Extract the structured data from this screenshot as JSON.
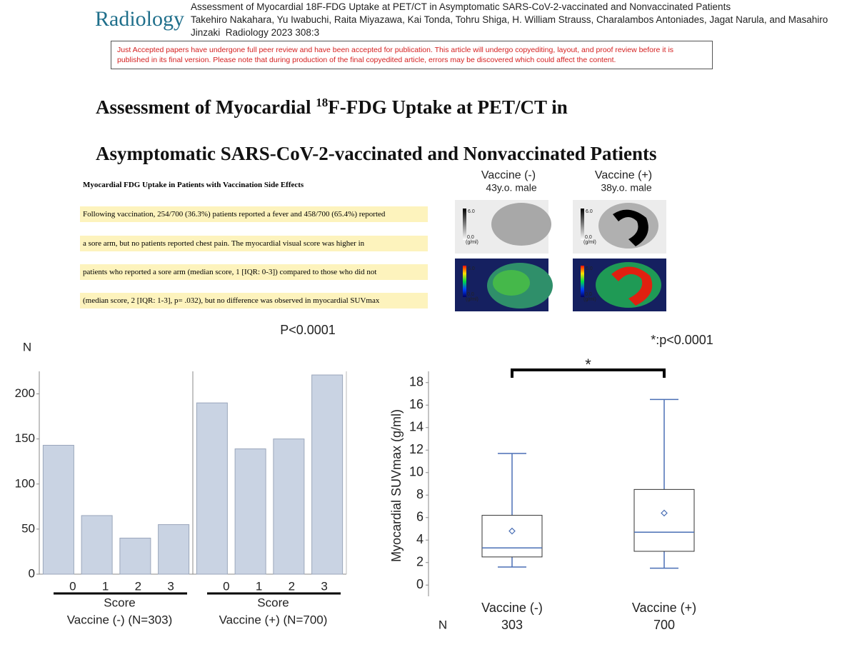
{
  "header": {
    "journal": "Radiology",
    "article_title": "Assessment of Myocardial 18F-FDG Uptake at PET/CT in Asymptomatic SARS-CoV-2-vaccinated and Nonvaccinated Patients",
    "authors": "Takehiro Nakahara, Yu Iwabuchi, Raita Miyazawa, Kai Tonda, Tohru Shiga, H. William Strauss, Charalambos Antoniades, Jagat Narula, and Masahiro Jinzaki",
    "citation": "Radiology 2023 308:3"
  },
  "notice": "Just Accepted papers have undergone full peer review and have been accepted for publication. This article will undergo copyediting, layout, and proof review before it is published in its final version. Please note that during production of the final copyedited article, errors may be discovered which could affect the content.",
  "title": {
    "line1_pre": "Assessment of Myocardial ",
    "line1_sup": "18",
    "line1_post": "F-FDG Uptake at PET/CT in",
    "line2": "Asymptomatic SARS-CoV-2-vaccinated and Nonvaccinated Patients"
  },
  "excerpt": {
    "heading": "Myocardial FDG Uptake in Patients with Vaccination Side Effects",
    "lines": [
      "Following vaccination, 254/700 (36.3%) patients reported a fever and 458/700 (65.4%) reported",
      "a sore arm, but no patients reported chest pain. The myocardial visual score was higher in",
      "patients who reported a sore arm (median score, 1 [IQR: 0-3]) compared to those who did not",
      "(median score, 2 [IQR: 1-3], p= .032), but no difference was observed in myocardial SUVmax"
    ]
  },
  "images": {
    "panels": [
      {
        "group": "Vaccine (-)",
        "patient": "43y.o. male"
      },
      {
        "group": "Vaccine (+)",
        "patient": "38y.o. male"
      }
    ],
    "scale": {
      "max": "6.0",
      "min": "0.0",
      "unit": "(g/ml)"
    }
  },
  "chart_data": [
    {
      "type": "bar",
      "ylabel": "N",
      "annotation": "P<0.0001",
      "ylim": [
        0,
        225
      ],
      "yticks": [
        0,
        50,
        100,
        150,
        200
      ],
      "color": "#c9d3e3",
      "x_label": "Score",
      "panels": [
        {
          "name": "Vaccine (-)  (N=303)",
          "categories": [
            "0",
            "1",
            "2",
            "3"
          ],
          "values": [
            143,
            65,
            40,
            55
          ]
        },
        {
          "name": "Vaccine (+) (N=700)",
          "categories": [
            "0",
            "1",
            "2",
            "3"
          ],
          "values": [
            190,
            139,
            150,
            221
          ]
        }
      ]
    },
    {
      "type": "box",
      "ylabel": "Myocardial SUVmax (g/ml)",
      "annotation": "*:p<0.0001",
      "significance": "*",
      "ylim": [
        -1,
        19
      ],
      "yticks": [
        0,
        2,
        4,
        6,
        8,
        10,
        12,
        14,
        16,
        18
      ],
      "color": "#4a6fb5",
      "categories": [
        "Vaccine (-)",
        "Vaccine (+)"
      ],
      "n_label": "N",
      "n": [
        303,
        700
      ],
      "whisker_low": [
        1.6,
        1.5
      ],
      "q1": [
        2.5,
        3.0
      ],
      "median": [
        3.3,
        4.7
      ],
      "q3": [
        6.2,
        8.5
      ],
      "whisker_high": [
        11.7,
        16.5
      ],
      "mean": [
        4.8,
        6.4
      ]
    }
  ]
}
